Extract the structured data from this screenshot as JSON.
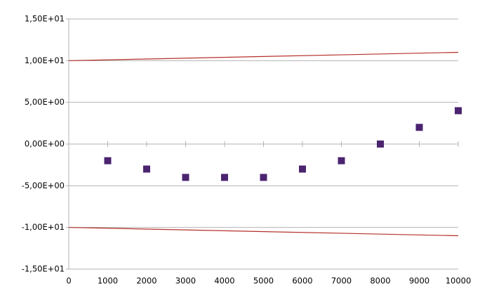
{
  "chart_data": {
    "type": "scatter",
    "xlim": [
      0,
      10000
    ],
    "xticks": [
      0,
      1000,
      2000,
      3000,
      4000,
      5000,
      6000,
      7000,
      8000,
      9000,
      10000
    ],
    "ylim": [
      -15,
      15
    ],
    "yticks": [
      {
        "value": -15,
        "label": "-1,50E+01"
      },
      {
        "value": -10,
        "label": "-1,00E+01"
      },
      {
        "value": -5,
        "label": "-5,00E+00"
      },
      {
        "value": 0,
        "label": "0,00E+00"
      },
      {
        "value": 5,
        "label": "5,00E+00"
      },
      {
        "value": 10,
        "label": "1,00E+01"
      },
      {
        "value": 15,
        "label": "1,50E+01"
      }
    ],
    "grid": true,
    "series": [
      {
        "mode": "markers",
        "color": "#4b2470",
        "x": [
          1000,
          2000,
          3000,
          4000,
          5000,
          6000,
          7000,
          8000,
          9000,
          10000
        ],
        "values": [
          -2,
          -3,
          -4,
          -4,
          -4,
          -3,
          -2,
          0,
          2,
          4
        ]
      },
      {
        "mode": "line",
        "color": "#b5302a",
        "x": [
          0,
          10000
        ],
        "values": [
          10,
          11
        ]
      },
      {
        "mode": "line",
        "color": "#b5302a",
        "x": [
          0,
          10000
        ],
        "values": [
          -10,
          -11
        ]
      }
    ]
  }
}
